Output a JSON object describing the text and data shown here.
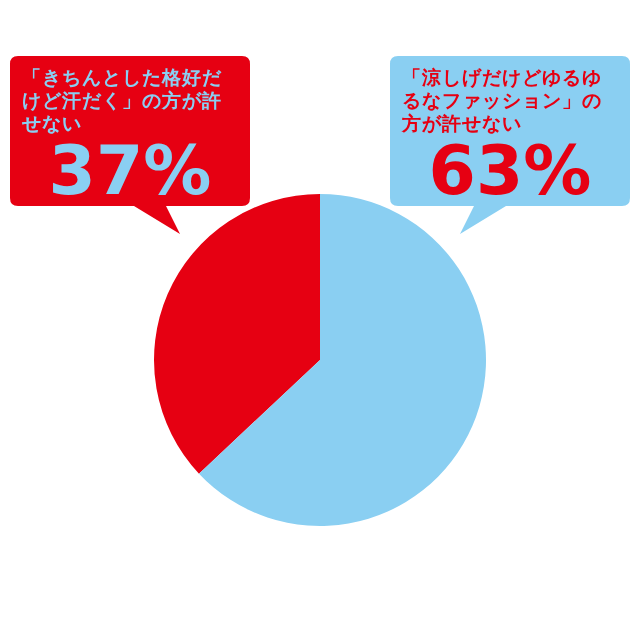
{
  "chart_data": {
    "type": "pie",
    "categories": [
      "「きちんとした格好だけど汗だく」の方が許せない",
      "「涼しげだけどゆるゆるなファッション」の方が許せない"
    ],
    "values": [
      37,
      63
    ],
    "colors": [
      "#e60012",
      "#8acff2"
    ],
    "value_labels": [
      "37%",
      "63%"
    ],
    "legend": false
  }
}
